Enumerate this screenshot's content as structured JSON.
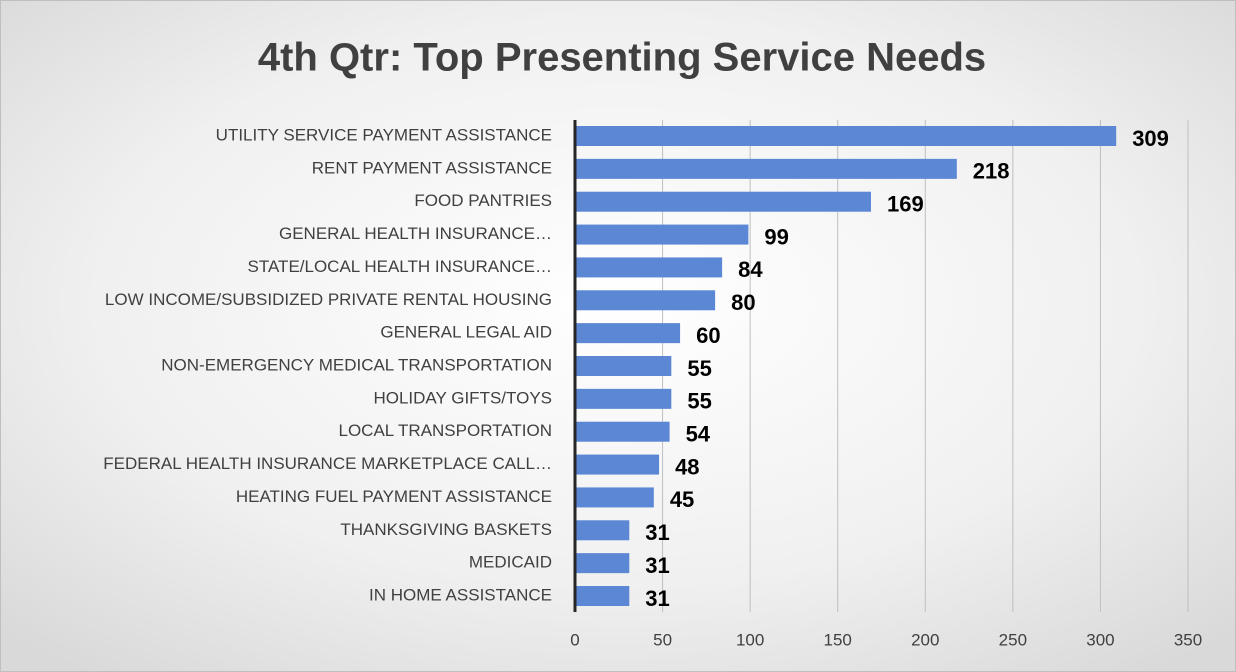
{
  "chart_data": {
    "type": "bar",
    "orientation": "horizontal",
    "title": "4th Qtr: Top Presenting Service Needs",
    "categories": [
      "UTILITY SERVICE PAYMENT ASSISTANCE",
      "RENT PAYMENT ASSISTANCE",
      "FOOD PANTRIES",
      "GENERAL HEALTH INSURANCE…",
      "STATE/LOCAL HEALTH INSURANCE…",
      "LOW INCOME/SUBSIDIZED PRIVATE RENTAL HOUSING",
      "GENERAL LEGAL AID",
      "NON-EMERGENCY MEDICAL TRANSPORTATION",
      "HOLIDAY GIFTS/TOYS",
      "LOCAL TRANSPORTATION",
      "FEDERAL HEALTH INSURANCE MARKETPLACE CALL…",
      "HEATING FUEL PAYMENT ASSISTANCE",
      "THANKSGIVING BASKETS",
      "MEDICAID",
      "IN HOME ASSISTANCE"
    ],
    "values": [
      309,
      218,
      169,
      99,
      84,
      80,
      60,
      55,
      55,
      54,
      48,
      45,
      31,
      31,
      31
    ],
    "color": "#5b87d5",
    "xlim": [
      0,
      350
    ],
    "xticks": [
      0,
      50,
      100,
      150,
      200,
      250,
      300,
      350
    ],
    "grid": true
  }
}
